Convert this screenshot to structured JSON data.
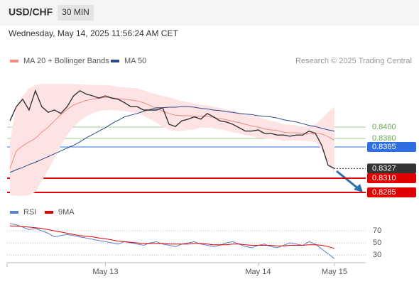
{
  "header": {
    "symbol": "USD/CHF",
    "timeframe": "30 MIN",
    "datetime": "Wednesday, May 14, 2025 11:56:24 AM CET",
    "credit": "Research © 2025 Trading Central"
  },
  "chart_data": [
    {
      "type": "line",
      "categories": [
        null,
        null,
        null,
        null,
        null,
        null,
        null,
        null,
        null,
        null,
        null,
        null,
        null,
        null,
        null,
        "May 13",
        null,
        null,
        null,
        null,
        null,
        null,
        null,
        null,
        null,
        null,
        null,
        null,
        null,
        null,
        null,
        null,
        null,
        null,
        null,
        null,
        null,
        null,
        null,
        "May 14",
        null,
        null,
        null,
        null,
        null,
        null,
        null,
        null,
        null,
        null,
        null,
        "May 15"
      ],
      "values": [
        0.8411,
        0.8436,
        0.8449,
        0.843,
        0.8464,
        0.8436,
        0.8426,
        0.843,
        0.8424,
        0.8436,
        0.8455,
        0.8464,
        0.8458,
        0.8455,
        0.8451,
        0.8455,
        0.8451,
        0.8449,
        0.8443,
        0.8436,
        0.8436,
        0.843,
        0.843,
        0.843,
        0.8434,
        0.8405,
        0.8401,
        0.8411,
        0.8414,
        0.8418,
        0.8414,
        0.8424,
        0.8418,
        0.8411,
        0.8409,
        0.8405,
        0.8399,
        0.8393,
        0.8393,
        0.8395,
        0.8389,
        0.8389,
        0.8386,
        0.8386,
        0.8384,
        0.8386,
        0.8386,
        0.8393,
        0.8389,
        0.8368,
        0.8333,
        0.8327
      ],
      "color": "#333333",
      "series": [
        {
          "name": "MA 20 + Bollinger Bands",
          "color": "#f28b82",
          "values": [
            0.8327,
            0.8358,
            0.8367,
            0.8374,
            0.838,
            0.8391,
            0.84,
            0.8411,
            0.8422,
            0.8431,
            0.8439,
            0.8443,
            0.8447,
            0.8449,
            0.8451,
            0.8452,
            0.8452,
            0.845,
            0.8449,
            0.8448,
            0.8446,
            0.8443,
            0.8438,
            0.8433,
            0.8428,
            0.8424,
            0.8421,
            0.842,
            0.842,
            0.8419,
            0.8419,
            0.8419,
            0.8417,
            0.8415,
            0.8413,
            0.841,
            0.8408,
            0.8405,
            0.8402,
            0.84,
            0.8397,
            0.8395,
            0.8394,
            0.8391,
            0.839,
            0.839,
            0.8389,
            0.8388,
            0.839,
            0.8388,
            0.8383,
            0.8377
          ],
          "upper": [
            0.8374,
            0.8436,
            0.8455,
            0.8468,
            0.8474,
            0.8476,
            0.8476,
            0.8476,
            0.8476,
            0.8476,
            0.8476,
            0.8475,
            0.8475,
            0.8474,
            0.8474,
            0.8474,
            0.8473,
            0.8471,
            0.847,
            0.8469,
            0.8468,
            0.8465,
            0.8461,
            0.8458,
            0.8455,
            0.8453,
            0.8449,
            0.8446,
            0.8444,
            0.8441,
            0.8439,
            0.8438,
            0.8436,
            0.8434,
            0.8431,
            0.8429,
            0.8426,
            0.8424,
            0.842,
            0.8418,
            0.8414,
            0.8411,
            0.8409,
            0.8405,
            0.8404,
            0.8403,
            0.8401,
            0.8401,
            0.8405,
            0.8414,
            0.8426,
            0.8436
          ],
          "lower": [
            0.828,
            0.8279,
            0.8279,
            0.828,
            0.8286,
            0.8305,
            0.8324,
            0.8346,
            0.8368,
            0.8386,
            0.8401,
            0.8411,
            0.8419,
            0.8424,
            0.8428,
            0.843,
            0.843,
            0.8429,
            0.8428,
            0.8426,
            0.8424,
            0.842,
            0.8414,
            0.8408,
            0.8401,
            0.8395,
            0.8393,
            0.8393,
            0.8395,
            0.8396,
            0.8399,
            0.8399,
            0.8398,
            0.8396,
            0.8394,
            0.8391,
            0.8389,
            0.8386,
            0.8384,
            0.8381,
            0.838,
            0.8379,
            0.8378,
            0.8376,
            0.8376,
            0.8376,
            0.8376,
            0.8375,
            0.8374,
            0.8361,
            0.8339,
            0.8318
          ]
        },
        {
          "name": "MA 50",
          "color": "#2b4a8b",
          "values": [
            0.832,
            0.8325,
            0.8329,
            0.8334,
            0.8338,
            0.8343,
            0.8348,
            0.8353,
            0.8358,
            0.8363,
            0.8368,
            0.8374,
            0.8381,
            0.8387,
            0.8393,
            0.8399,
            0.8406,
            0.8412,
            0.8418,
            0.8421,
            0.8424,
            0.8428,
            0.8431,
            0.8434,
            0.8434,
            0.8435,
            0.8435,
            0.8436,
            0.8436,
            0.8435,
            0.8433,
            0.8432,
            0.843,
            0.8429,
            0.8427,
            0.8426,
            0.8424,
            0.8423,
            0.8422,
            0.842,
            0.8419,
            0.8418,
            0.8416,
            0.8413,
            0.8411,
            0.8409,
            0.8406,
            0.8403,
            0.8401,
            0.8398,
            0.8395,
            0.8393
          ]
        }
      ],
      "levels": [
        {
          "value": 0.84,
          "label": "0.8400",
          "color": "#6aa84f"
        },
        {
          "value": 0.838,
          "label": "0.8380",
          "color": "#6aa84f"
        },
        {
          "value": 0.8365,
          "label": "0.8365",
          "color": "#2f6fdf"
        },
        {
          "value": 0.8327,
          "label": "0.8327",
          "color": "#333333"
        },
        {
          "value": 0.831,
          "label": "0.8310",
          "color": "#e00000"
        },
        {
          "value": 0.8285,
          "label": "0.8285",
          "color": "#e00000"
        }
      ],
      "ylim": [
        0.827,
        0.848
      ]
    },
    {
      "type": "line",
      "series": [
        {
          "name": "RSI",
          "color": "#5b7fd6",
          "values": [
            82,
            80,
            76,
            72,
            74,
            70,
            66,
            60,
            62,
            64,
            62,
            60,
            58,
            56,
            54,
            52,
            50,
            48,
            52,
            50,
            48,
            46,
            50,
            52,
            48,
            46,
            44,
            48,
            50,
            52,
            48,
            46,
            44,
            46,
            50,
            52,
            48,
            44,
            42,
            46,
            48,
            44,
            42,
            46,
            50,
            48,
            46,
            52,
            48,
            40,
            32,
            24
          ]
        },
        {
          "name": "9MA",
          "color": "#e00000",
          "values": [
            78,
            78,
            77,
            76,
            75,
            74,
            72,
            70,
            68,
            66,
            64,
            62,
            61,
            60,
            58,
            57,
            55,
            53,
            52,
            51,
            50,
            49,
            49,
            49,
            49,
            48,
            48,
            48,
            48,
            49,
            49,
            48,
            47,
            47,
            47,
            48,
            48,
            47,
            46,
            46,
            46,
            46,
            45,
            45,
            46,
            46,
            46,
            47,
            47,
            46,
            44,
            41
          ]
        }
      ],
      "ylim": [
        15,
        90
      ],
      "yticks": [
        30,
        50,
        70
      ]
    }
  ]
}
